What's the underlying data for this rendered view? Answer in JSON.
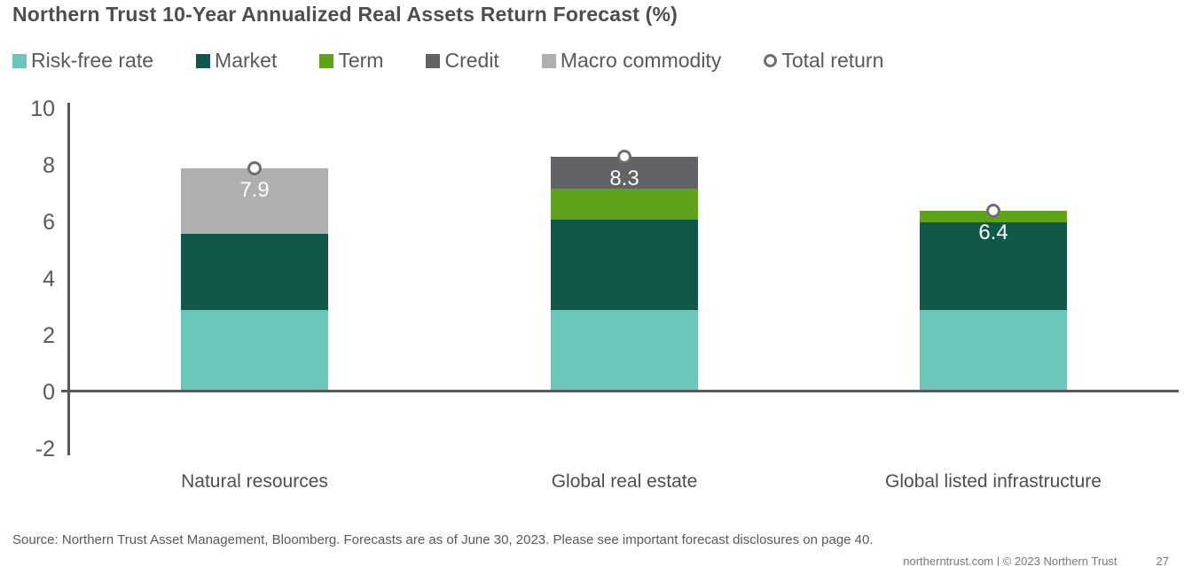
{
  "title": "Northern Trust 10-Year Annualized Real Assets Return Forecast (%)",
  "legend": {
    "items": [
      {
        "label": "Risk-free rate",
        "marker": "square",
        "color": "#6cc6b7"
      },
      {
        "label": "Market",
        "marker": "square",
        "color": "#12584a"
      },
      {
        "label": "Term",
        "marker": "square",
        "color": "#5fa418"
      },
      {
        "label": "Credit",
        "marker": "square",
        "color": "#626366"
      },
      {
        "label": "Macro commodity",
        "marker": "square",
        "color": "#afafaf"
      },
      {
        "label": "Total return",
        "marker": "circle",
        "color": "#6e6f72"
      }
    ]
  },
  "chart_data": {
    "type": "bar",
    "stacked": true,
    "title": "Northern Trust 10-Year Annualized Real Assets Return Forecast (%)",
    "categories": [
      "Natural resources",
      "Global real estate",
      "Global listed infrastructure"
    ],
    "series": [
      {
        "name": "Risk-free rate",
        "color": "#6cc6b7",
        "values": [
          2.9,
          2.9,
          2.9
        ]
      },
      {
        "name": "Market",
        "color": "#12584a",
        "values": [
          2.7,
          3.2,
          3.1
        ]
      },
      {
        "name": "Term",
        "color": "#5fa418",
        "values": [
          0,
          1.1,
          0.4
        ]
      },
      {
        "name": "Credit",
        "color": "#626366",
        "values": [
          0,
          1.1,
          0
        ]
      },
      {
        "name": "Macro commodity",
        "color": "#afafaf",
        "values": [
          2.3,
          0,
          0
        ]
      }
    ],
    "totals": [
      7.9,
      8.3,
      6.4
    ],
    "total_labels": [
      "7.9",
      "8.3",
      "6.4"
    ],
    "total_marker": "open-circle",
    "xlabel": "",
    "ylabel": "",
    "ylim": [
      -2,
      10
    ],
    "yticks": [
      10,
      8,
      6,
      4,
      2,
      0,
      -2
    ],
    "grid": false,
    "legend_position": "top"
  },
  "source_note": "Source: Northern Trust Asset Management, Bloomberg. Forecasts are as of June 30, 2023. Please see important forecast disclosures on page 40.",
  "footer": {
    "text": "northerntrust.com  |  © 2023 Northern Trust",
    "page": "27"
  }
}
